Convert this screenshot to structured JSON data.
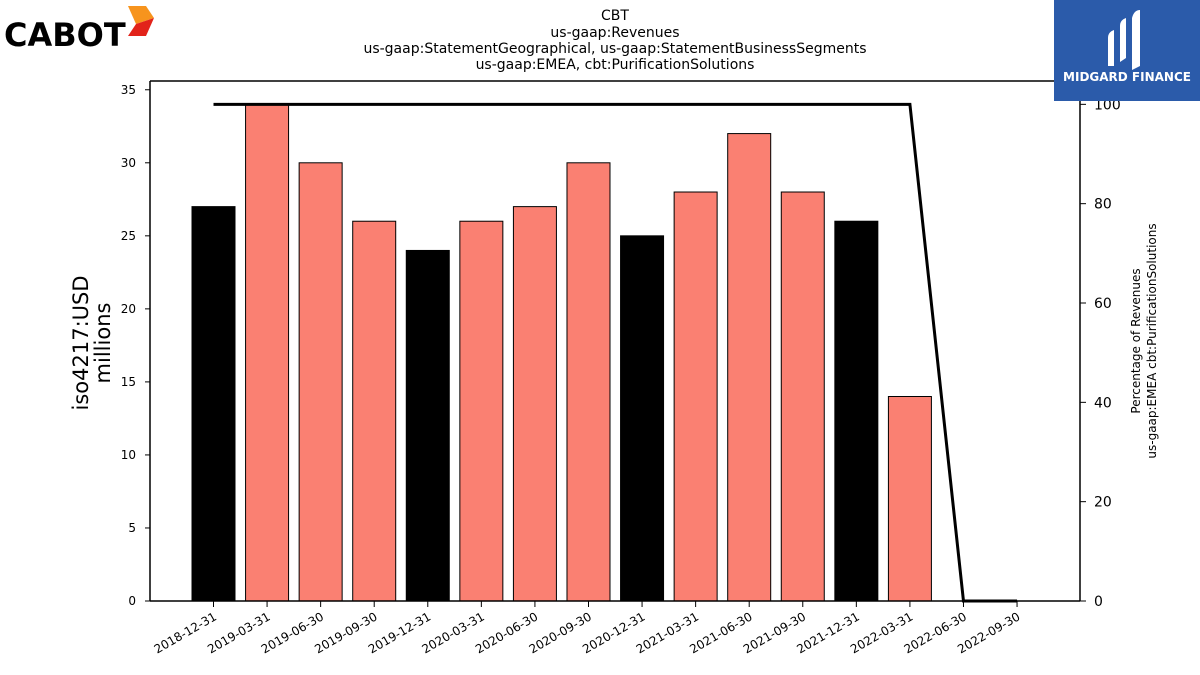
{
  "header": {
    "left_logo_text": "CABOT",
    "right_logo_text": "MIDGARD FINANCE"
  },
  "chart_data": {
    "type": "bar",
    "title_lines": [
      "CBT",
      "us-gaap:Revenues",
      "us-gaap:StatementGeographical, us-gaap:StatementBusinessSegments",
      "us-gaap:EMEA, cbt:PurificationSolutions"
    ],
    "ylabel_lines": [
      "iso4217:USD",
      "millions"
    ],
    "y2label_lines": [
      "Percentage of Revenues",
      "us-gaap:EMEA cbt:PurificationSolutions"
    ],
    "categories": [
      "2018-12-31",
      "2019-03-31",
      "2019-06-30",
      "2019-09-30",
      "2019-12-31",
      "2020-03-31",
      "2020-06-30",
      "2020-09-30",
      "2020-12-31",
      "2021-03-31",
      "2021-06-30",
      "2021-09-30",
      "2021-12-31",
      "2022-03-31",
      "2022-06-30",
      "2022-09-30"
    ],
    "series": [
      {
        "values": [
          27,
          34,
          30,
          26,
          24,
          26,
          27,
          30,
          25,
          28,
          32,
          28,
          26,
          14,
          null,
          null
        ],
        "bar_colors": [
          "#000000",
          "#fa8072",
          "#fa8072",
          "#fa8072",
          "#000000",
          "#fa8072",
          "#fa8072",
          "#fa8072",
          "#000000",
          "#fa8072",
          "#fa8072",
          "#fa8072",
          "#000000",
          "#fa8072",
          null,
          null
        ]
      },
      {
        "type": "line",
        "axis": "right",
        "values": [
          100,
          100,
          100,
          100,
          100,
          100,
          100,
          100,
          100,
          100,
          100,
          100,
          100,
          100,
          0,
          0
        ]
      }
    ],
    "ylim": [
      0,
      35.6
    ],
    "yticks": [
      0,
      5,
      10,
      15,
      20,
      25,
      30,
      35
    ],
    "y2lim": [
      0,
      104.7
    ],
    "y2ticks": [
      0,
      20,
      40,
      60,
      80,
      100
    ],
    "grid": false,
    "legend": "none"
  }
}
